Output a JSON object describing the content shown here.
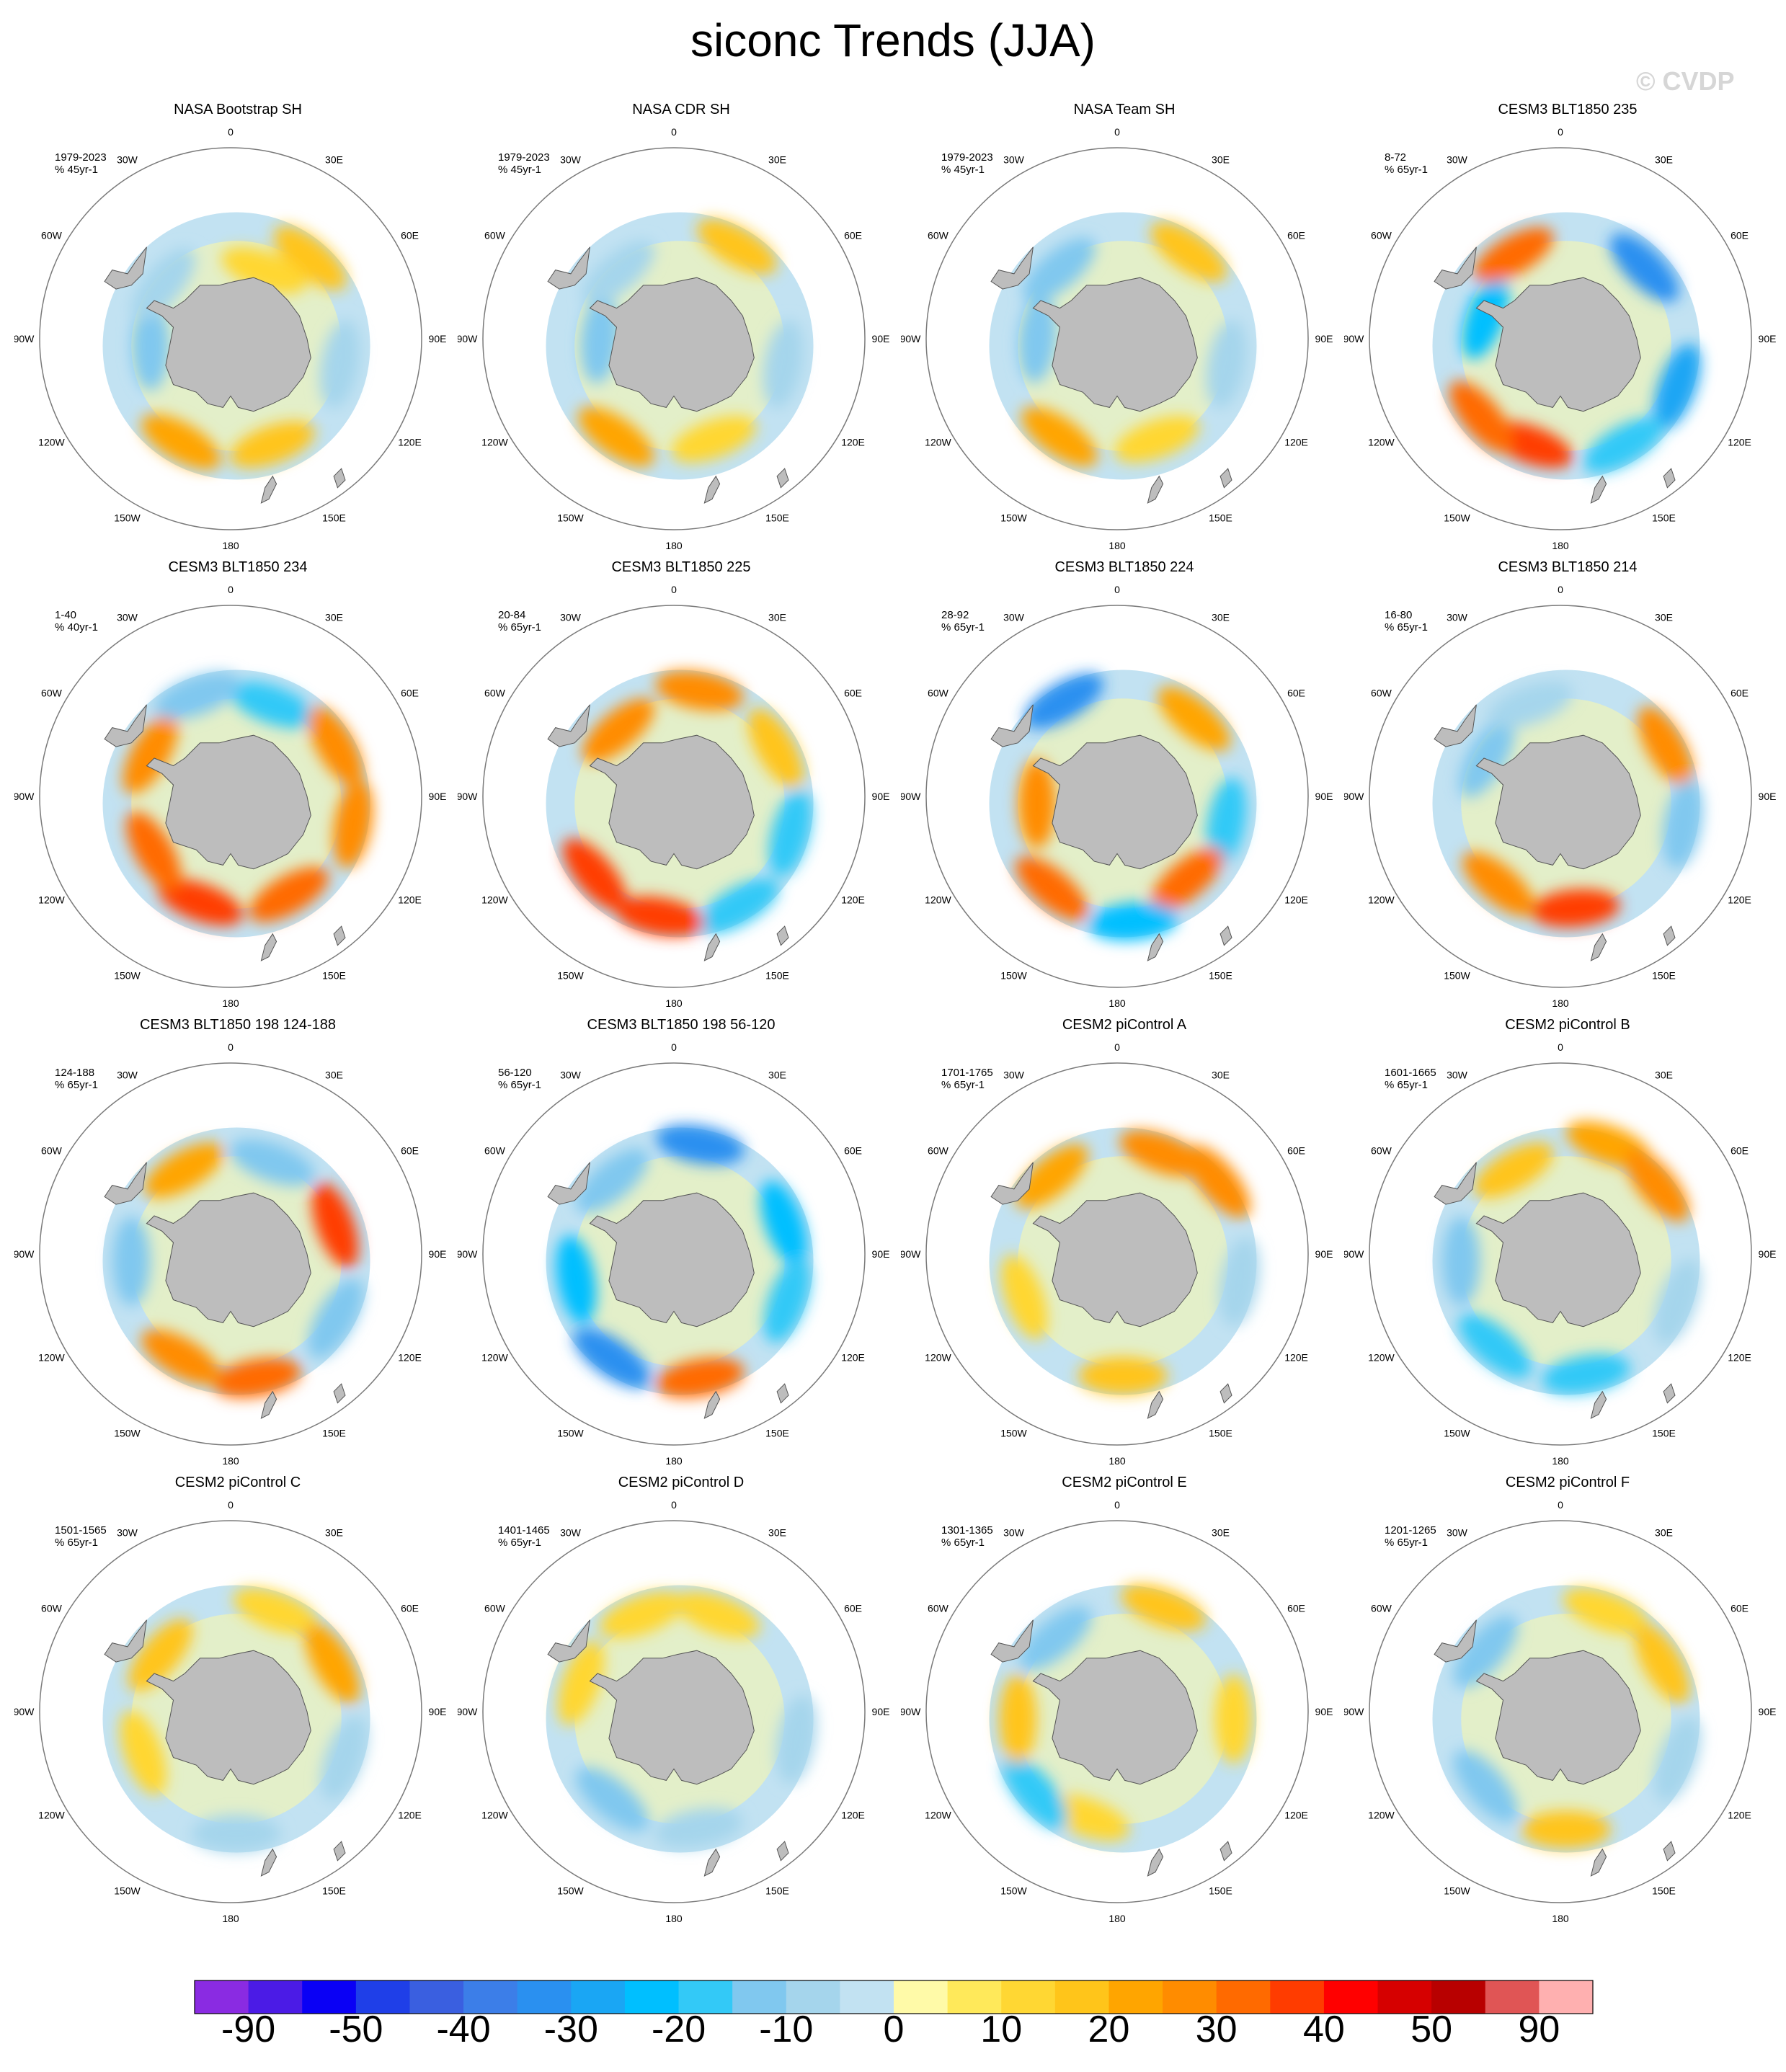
{
  "title": "siconc Trends (JJA)",
  "watermark": "© CVDP",
  "lon_labels": [
    "0",
    "30E",
    "60E",
    "90E",
    "120E",
    "150E",
    "180",
    "150W",
    "120W",
    "90W",
    "60W",
    "30W"
  ],
  "colors": {
    "land": "#bdbdbd",
    "outline": "#7a7a7a",
    "palette": [
      "#8a2be2",
      "#4b1be6",
      "#0a00f5",
      "#1f3fe8",
      "#3a5fe0",
      "#3c7ee8",
      "#2a90f0",
      "#1aa6f4",
      "#00bfff",
      "#33c9f7",
      "#80c8ef",
      "#a5d5ec",
      "#c2e2f2",
      "#fffaa8",
      "#ffe95a",
      "#ffd733",
      "#ffc51a",
      "#ffa500",
      "#ff8c00",
      "#ff6a00",
      "#ff3c00",
      "#ff0000",
      "#d60000",
      "#b80000",
      "#e05555",
      "#ffb0b0"
    ]
  },
  "colorbar": {
    "labels": [
      "-90",
      "-50",
      "-40",
      "-30",
      "-20",
      "-10",
      "0",
      "10",
      "20",
      "30",
      "40",
      "50",
      "90"
    ]
  },
  "panels": [
    {
      "title": "NASA Bootstrap SH",
      "period": "1979-2023",
      "units": "% 45yr-1",
      "features": [
        {
          "a": 40,
          "r": 0.6,
          "v": 3
        },
        {
          "a": 100,
          "r": 0.55,
          "v": -2
        },
        {
          "a": 160,
          "r": 0.55,
          "v": 3
        },
        {
          "a": 210,
          "r": 0.58,
          "v": 4
        },
        {
          "a": 270,
          "r": 0.45,
          "v": -3
        },
        {
          "a": 310,
          "r": 0.5,
          "v": -2
        },
        {
          "a": 20,
          "r": 0.42,
          "v": 2
        }
      ]
    },
    {
      "title": "NASA CDR SH",
      "period": "1979-2023",
      "units": "% 45yr-1",
      "features": [
        {
          "a": 30,
          "r": 0.6,
          "v": 3
        },
        {
          "a": 100,
          "r": 0.55,
          "v": -2
        },
        {
          "a": 160,
          "r": 0.52,
          "v": 2
        },
        {
          "a": 215,
          "r": 0.58,
          "v": 4
        },
        {
          "a": 275,
          "r": 0.42,
          "v": -3
        },
        {
          "a": 320,
          "r": 0.5,
          "v": -2
        }
      ]
    },
    {
      "title": "NASA Team SH",
      "period": "1979-2023",
      "units": "% 45yr-1",
      "features": [
        {
          "a": 35,
          "r": 0.6,
          "v": 3
        },
        {
          "a": 100,
          "r": 0.55,
          "v": -2
        },
        {
          "a": 160,
          "r": 0.52,
          "v": 2
        },
        {
          "a": 215,
          "r": 0.58,
          "v": 4
        },
        {
          "a": 275,
          "r": 0.45,
          "v": -3
        },
        {
          "a": 320,
          "r": 0.52,
          "v": -3
        }
      ]
    },
    {
      "title": "CESM3 BLT1850 235",
      "period": "8-72",
      "units": "% 65yr-1",
      "features": [
        {
          "a": 45,
          "r": 0.58,
          "v": -7
        },
        {
          "a": 110,
          "r": 0.62,
          "v": -6
        },
        {
          "a": 150,
          "r": 0.6,
          "v": -4
        },
        {
          "a": 200,
          "r": 0.55,
          "v": 7
        },
        {
          "a": 230,
          "r": 0.58,
          "v": 6
        },
        {
          "a": 290,
          "r": 0.45,
          "v": -5
        },
        {
          "a": 330,
          "r": 0.55,
          "v": 6
        }
      ]
    },
    {
      "title": "CESM3 BLT1850 234",
      "period": "1-40",
      "units": "% 40yr-1",
      "features": [
        {
          "a": 20,
          "r": 0.55,
          "v": -4
        },
        {
          "a": 60,
          "r": 0.6,
          "v": 5
        },
        {
          "a": 100,
          "r": 0.62,
          "v": 5
        },
        {
          "a": 150,
          "r": 0.55,
          "v": 6
        },
        {
          "a": 200,
          "r": 0.55,
          "v": 7
        },
        {
          "a": 240,
          "r": 0.5,
          "v": 6
        },
        {
          "a": 300,
          "r": 0.52,
          "v": 5
        },
        {
          "a": 340,
          "r": 0.6,
          "v": -3
        }
      ]
    },
    {
      "title": "CESM3 BLT1850 225",
      "period": "20-84",
      "units": "% 65yr-1",
      "features": [
        {
          "a": 10,
          "r": 0.6,
          "v": 5
        },
        {
          "a": 60,
          "r": 0.58,
          "v": 3
        },
        {
          "a": 105,
          "r": 0.6,
          "v": -4
        },
        {
          "a": 150,
          "r": 0.62,
          "v": -4
        },
        {
          "a": 190,
          "r": 0.6,
          "v": 7
        },
        {
          "a": 230,
          "r": 0.58,
          "v": 7
        },
        {
          "a": 320,
          "r": 0.5,
          "v": 5
        }
      ]
    },
    {
      "title": "CESM3 BLT1850 224",
      "period": "28-92",
      "units": "% 65yr-1",
      "features": [
        {
          "a": 330,
          "r": 0.62,
          "v": -7
        },
        {
          "a": 40,
          "r": 0.58,
          "v": 4
        },
        {
          "a": 100,
          "r": 0.55,
          "v": -4
        },
        {
          "a": 140,
          "r": 0.52,
          "v": 6
        },
        {
          "a": 175,
          "r": 0.62,
          "v": -5
        },
        {
          "a": 220,
          "r": 0.58,
          "v": 6
        },
        {
          "a": 270,
          "r": 0.45,
          "v": 5
        }
      ]
    },
    {
      "title": "CESM3 BLT1850 214",
      "period": "16-80",
      "units": "% 65yr-1",
      "features": [
        {
          "a": 60,
          "r": 0.6,
          "v": 5
        },
        {
          "a": 100,
          "r": 0.62,
          "v": -3
        },
        {
          "a": 175,
          "r": 0.55,
          "v": 7
        },
        {
          "a": 220,
          "r": 0.55,
          "v": 5
        },
        {
          "a": 300,
          "r": 0.48,
          "v": -3
        },
        {
          "a": 340,
          "r": 0.55,
          "v": -2
        }
      ]
    },
    {
      "title": "CESM3 BLT1850 198 124-188",
      "period": "124-188",
      "units": "% 65yr-1",
      "features": [
        {
          "a": 70,
          "r": 0.55,
          "v": 7
        },
        {
          "a": 20,
          "r": 0.55,
          "v": -3
        },
        {
          "a": 120,
          "r": 0.6,
          "v": -3
        },
        {
          "a": 170,
          "r": 0.62,
          "v": 6
        },
        {
          "a": 210,
          "r": 0.58,
          "v": 5
        },
        {
          "a": 270,
          "r": 0.55,
          "v": -3
        },
        {
          "a": 330,
          "r": 0.55,
          "v": 4
        }
      ]
    },
    {
      "title": "CESM3 BLT1850 198 56-120",
      "period": "56-120",
      "units": "% 65yr-1",
      "features": [
        {
          "a": 10,
          "r": 0.62,
          "v": -7
        },
        {
          "a": 70,
          "r": 0.58,
          "v": -5
        },
        {
          "a": 110,
          "r": 0.6,
          "v": -4
        },
        {
          "a": 170,
          "r": 0.62,
          "v": 6
        },
        {
          "a": 215,
          "r": 0.62,
          "v": -7
        },
        {
          "a": 260,
          "r": 0.55,
          "v": -5
        },
        {
          "a": 320,
          "r": 0.55,
          "v": -3
        }
      ]
    },
    {
      "title": "CESM2 piControl A",
      "period": "1701-1765",
      "units": "% 65yr-1",
      "features": [
        {
          "a": 20,
          "r": 0.6,
          "v": 5
        },
        {
          "a": 50,
          "r": 0.65,
          "v": 5
        },
        {
          "a": 100,
          "r": 0.62,
          "v": -2
        },
        {
          "a": 180,
          "r": 0.6,
          "v": 3
        },
        {
          "a": 250,
          "r": 0.55,
          "v": 2
        },
        {
          "a": 320,
          "r": 0.58,
          "v": 4
        }
      ]
    },
    {
      "title": "CESM2 piControl B",
      "period": "1601-1665",
      "units": "% 65yr-1",
      "features": [
        {
          "a": 20,
          "r": 0.65,
          "v": 4
        },
        {
          "a": 50,
          "r": 0.62,
          "v": 5
        },
        {
          "a": 110,
          "r": 0.62,
          "v": -2
        },
        {
          "a": 170,
          "r": 0.6,
          "v": -4
        },
        {
          "a": 220,
          "r": 0.58,
          "v": -4
        },
        {
          "a": 270,
          "r": 0.55,
          "v": -3
        },
        {
          "a": 330,
          "r": 0.55,
          "v": 3
        }
      ]
    },
    {
      "title": "CESM2 piControl C",
      "period": "1501-1565",
      "units": "% 65yr-1",
      "features": [
        {
          "a": 20,
          "r": 0.6,
          "v": 2
        },
        {
          "a": 60,
          "r": 0.58,
          "v": 4
        },
        {
          "a": 110,
          "r": 0.6,
          "v": -2
        },
        {
          "a": 180,
          "r": 0.6,
          "v": -2
        },
        {
          "a": 250,
          "r": 0.52,
          "v": 2
        },
        {
          "a": 310,
          "r": 0.52,
          "v": 3
        }
      ]
    },
    {
      "title": "CESM2 piControl D",
      "period": "1401-1465",
      "units": "% 65yr-1",
      "features": [
        {
          "a": 20,
          "r": 0.58,
          "v": 2
        },
        {
          "a": 100,
          "r": 0.62,
          "v": -2
        },
        {
          "a": 170,
          "r": 0.58,
          "v": -2
        },
        {
          "a": 220,
          "r": 0.55,
          "v": -3
        },
        {
          "a": 290,
          "r": 0.55,
          "v": 2
        },
        {
          "a": 340,
          "r": 0.58,
          "v": 2
        }
      ]
    },
    {
      "title": "CESM2 piControl E",
      "period": "1301-1365",
      "units": "% 65yr-1",
      "features": [
        {
          "a": 20,
          "r": 0.62,
          "v": 3
        },
        {
          "a": 90,
          "r": 0.58,
          "v": 2
        },
        {
          "a": 200,
          "r": 0.55,
          "v": 2
        },
        {
          "a": 230,
          "r": 0.6,
          "v": -4
        },
        {
          "a": 270,
          "r": 0.55,
          "v": 3
        },
        {
          "a": 320,
          "r": 0.55,
          "v": -3
        }
      ]
    },
    {
      "title": "CESM2 piControl F",
      "period": "1201-1265",
      "units": "% 65yr-1",
      "features": [
        {
          "a": 20,
          "r": 0.6,
          "v": 2
        },
        {
          "a": 60,
          "r": 0.58,
          "v": 3
        },
        {
          "a": 110,
          "r": 0.62,
          "v": -2
        },
        {
          "a": 180,
          "r": 0.58,
          "v": 3
        },
        {
          "a": 230,
          "r": 0.55,
          "v": -3
        },
        {
          "a": 310,
          "r": 0.55,
          "v": -3
        }
      ]
    }
  ]
}
